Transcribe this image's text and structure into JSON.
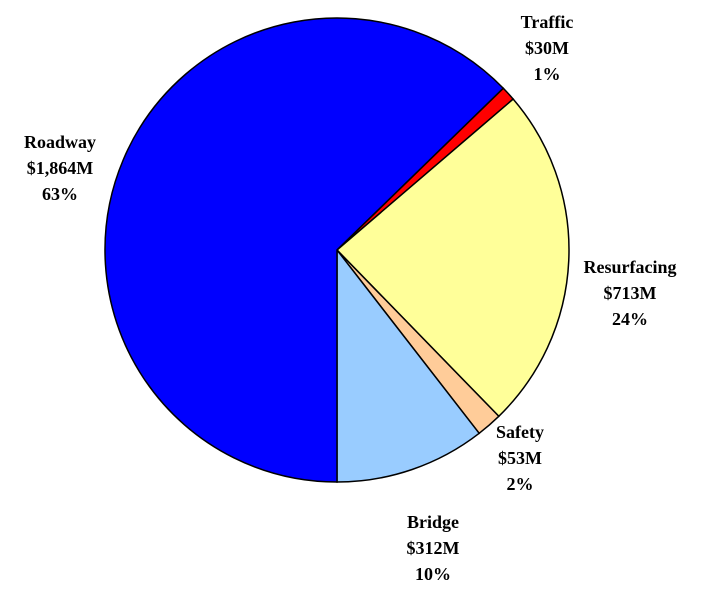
{
  "chart_data": {
    "type": "pie",
    "categories": [
      "Traffic",
      "Resurfacing",
      "Safety",
      "Bridge",
      "Roadway"
    ],
    "values": [
      30,
      713,
      53,
      312,
      1864
    ],
    "value_labels": [
      "$30M",
      "$713M",
      "$53M",
      "$312M",
      "$1,864M"
    ],
    "percents": [
      1,
      24,
      2,
      10,
      63
    ],
    "percent_labels": [
      "1%",
      "24%",
      "2%",
      "10%",
      "63%"
    ],
    "colors": [
      "#ff0000",
      "#ffff99",
      "#ffcc99",
      "#99ccff",
      "#0000ff"
    ]
  }
}
